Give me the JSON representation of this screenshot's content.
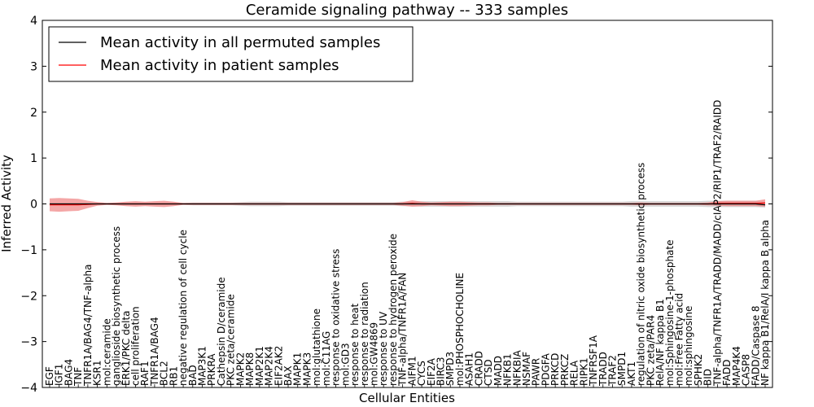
{
  "chart_data": {
    "type": "line",
    "title": "Ceramide signaling pathway -- 333 samples",
    "xlabel": "Cellular Entities",
    "ylabel": "Inferred Activity",
    "ylim": [
      -4,
      4
    ],
    "yticks": [
      "−4",
      "−3",
      "−2",
      "−1",
      "0",
      "1",
      "2",
      "3",
      "4"
    ],
    "grid": false,
    "legend_position": "top-left",
    "colors": {
      "permuted": "#000000",
      "patient": "#ff0000",
      "patient_band": "#f08080",
      "permuted_band": "#c8c8c8"
    },
    "categories": [
      "EGF",
      "IGF1",
      "BAG4",
      "TNF",
      "TNFR1A/BAG4/TNF-alpha",
      "KSR1",
      "mol:ceramide",
      "ganglioside biosynthetic process",
      "ERK1/PKC delta",
      "cell proliferation",
      "RAF1",
      "TNFR1A/BAG4",
      "BCL2",
      "RB1",
      "negative regulation of cell cycle",
      "BAD",
      "MAP3K1",
      "PRKRA",
      "Cathepsin D/ceramide",
      "PKC zeta/ceramide",
      "MAPK2",
      "MAPK8",
      "MAP2K1",
      "MAP2K4",
      "EIF2AK2",
      "BAX",
      "MAPK1",
      "MAPK3",
      "mol:glutathione",
      "mol:C11AG",
      "response to oxidative stress",
      "mol:GD3",
      "response to heat",
      "response to radiation",
      "mol:GW4869",
      "response to UV",
      "response to hydrogen peroxide",
      "TNF-alpha/TNFR1A/FAN",
      "AIFM1",
      "CYCS",
      "EIF2A",
      "BIRC3",
      "SMPD3",
      "mol:PHOSPHOCHOLINE",
      "ASAH1",
      "CRADD",
      "CTSD",
      "MADD",
      "NFKB1",
      "NFKBIA",
      "NSMAF",
      "PAWR",
      "PDGFA",
      "PRKCD",
      "PRKCZ",
      "RELA",
      "RIPK1",
      "TNFRSF1A",
      "TRADD",
      "TRAF2",
      "SMPD1",
      "AKT1",
      "regulation of nitric oxide biosynthetic process",
      "PKC zeta/PAR4",
      "RelA/NF kappa B1",
      "mol:Sphingosine-1-phosphate",
      "mol:Free Fatty acid",
      "mol:sphingosine",
      "SPHK2",
      "BID",
      "TNF-alpha/TNFR1A/TRADD/MADD/cIAP2/RIP1/TRAF2/RAIDD",
      "FADD",
      "MAP4K4",
      "CASP8",
      "FADD/Caspase 8",
      "NF kappa B1/RelA/I kappa B alpha"
    ],
    "series": [
      {
        "name": "Mean activity in all permuted samples",
        "values": [
          0.0,
          0.0,
          0.0,
          0.0,
          0.0,
          0.0,
          0.0,
          0.0,
          0.0,
          0.0,
          0.0,
          0.0,
          0.0,
          0.0,
          0.0,
          0.0,
          0.0,
          0.0,
          0.0,
          0.0,
          0.0,
          0.0,
          0.0,
          0.0,
          0.0,
          0.0,
          0.0,
          0.0,
          0.0,
          0.0,
          0.0,
          0.0,
          0.0,
          0.0,
          0.0,
          0.0,
          0.0,
          0.0,
          0.0,
          0.0,
          0.0,
          0.0,
          0.0,
          0.0,
          0.0,
          0.0,
          0.0,
          0.0,
          0.0,
          0.0,
          0.0,
          0.0,
          0.0,
          0.0,
          0.0,
          0.0,
          0.0,
          0.0,
          0.0,
          0.0,
          0.0,
          0.0,
          0.0,
          0.0,
          0.0,
          0.0,
          0.0,
          0.0,
          0.0,
          0.0,
          0.0,
          0.0,
          0.0,
          0.0,
          0.0,
          -0.02
        ],
        "band": [
          0.02,
          0.02,
          0.02,
          0.02,
          0.02,
          0.02,
          0.02,
          0.02,
          0.02,
          0.02,
          0.02,
          0.02,
          0.02,
          0.02,
          0.02,
          0.03,
          0.03,
          0.03,
          0.03,
          0.03,
          0.04,
          0.05,
          0.05,
          0.05,
          0.05,
          0.04,
          0.04,
          0.04,
          0.04,
          0.04,
          0.04,
          0.04,
          0.04,
          0.04,
          0.04,
          0.04,
          0.04,
          0.05,
          0.05,
          0.06,
          0.06,
          0.06,
          0.06,
          0.06,
          0.06,
          0.06,
          0.06,
          0.06,
          0.06,
          0.05,
          0.05,
          0.05,
          0.05,
          0.05,
          0.05,
          0.05,
          0.05,
          0.05,
          0.05,
          0.05,
          0.05,
          0.06,
          0.06,
          0.06,
          0.06,
          0.06,
          0.06,
          0.06,
          0.06,
          0.07,
          0.07,
          0.07,
          0.07,
          0.07,
          0.07,
          0.06
        ]
      },
      {
        "name": "Mean activity in patient samples",
        "values": [
          -0.02,
          -0.02,
          -0.02,
          -0.02,
          -0.01,
          0.0,
          0.0,
          0.0,
          0.0,
          0.0,
          0.0,
          0.0,
          0.0,
          0.0,
          0.0,
          0.0,
          0.0,
          0.0,
          0.0,
          0.0,
          0.0,
          0.0,
          0.0,
          0.0,
          0.0,
          0.0,
          0.0,
          0.0,
          0.0,
          0.0,
          0.0,
          0.0,
          0.0,
          0.0,
          0.0,
          0.0,
          0.0,
          0.0,
          0.01,
          0.0,
          0.0,
          0.0,
          0.0,
          0.0,
          0.0,
          0.0,
          0.0,
          0.0,
          0.0,
          0.0,
          0.0,
          0.0,
          0.0,
          0.0,
          0.0,
          0.0,
          0.0,
          0.0,
          0.0,
          0.0,
          0.0,
          0.0,
          0.0,
          0.0,
          0.0,
          0.0,
          0.0,
          0.0,
          0.0,
          0.0,
          0.01,
          0.01,
          0.01,
          0.01,
          0.01,
          0.02
        ],
        "band": [
          0.14,
          0.15,
          0.14,
          0.13,
          0.08,
          0.04,
          0.02,
          0.03,
          0.05,
          0.06,
          0.05,
          0.06,
          0.07,
          0.05,
          0.02,
          0.02,
          0.02,
          0.02,
          0.02,
          0.02,
          0.02,
          0.02,
          0.02,
          0.02,
          0.02,
          0.02,
          0.02,
          0.02,
          0.02,
          0.02,
          0.02,
          0.02,
          0.02,
          0.02,
          0.02,
          0.02,
          0.02,
          0.04,
          0.07,
          0.05,
          0.03,
          0.04,
          0.05,
          0.05,
          0.04,
          0.03,
          0.03,
          0.02,
          0.02,
          0.02,
          0.02,
          0.02,
          0.02,
          0.02,
          0.02,
          0.02,
          0.02,
          0.02,
          0.02,
          0.02,
          0.02,
          0.02,
          0.03,
          0.02,
          0.02,
          0.02,
          0.02,
          0.02,
          0.02,
          0.03,
          0.05,
          0.06,
          0.06,
          0.06,
          0.06,
          0.08
        ]
      }
    ]
  }
}
